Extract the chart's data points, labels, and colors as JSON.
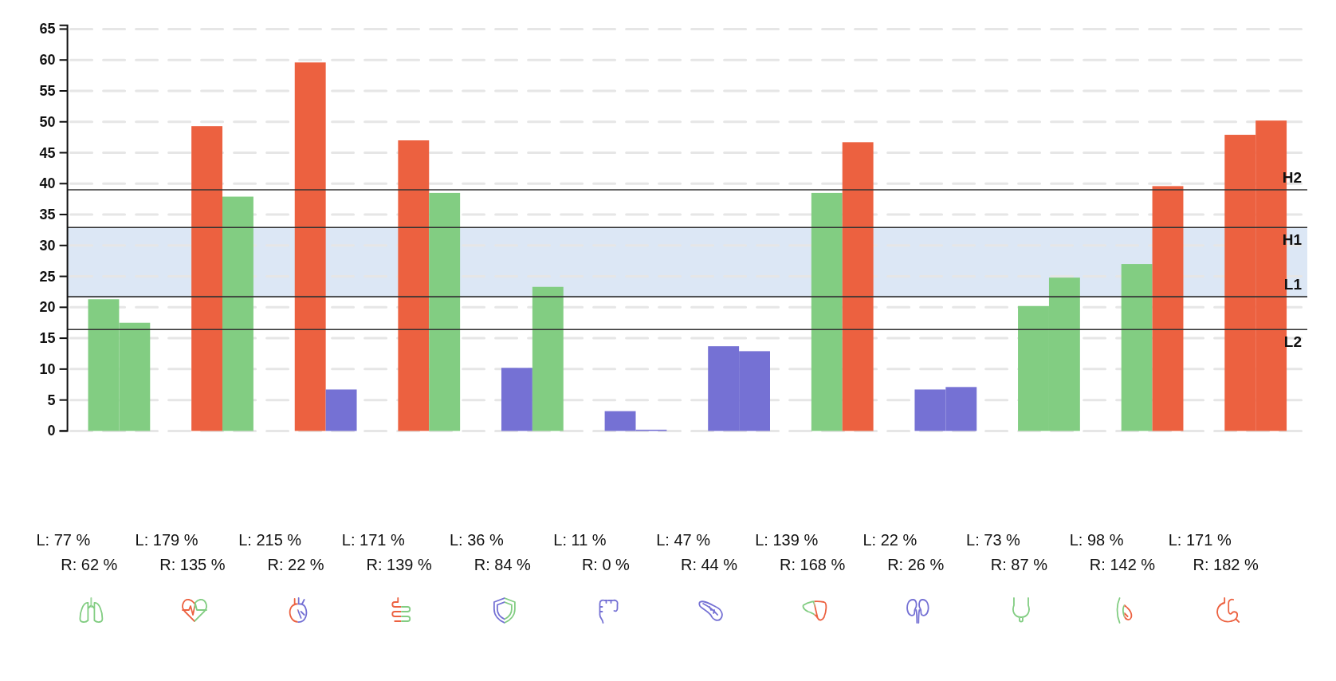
{
  "chart_data": {
    "type": "bar",
    "categories": [
      null,
      null,
      null,
      null,
      null,
      null,
      null,
      null,
      null,
      null,
      null,
      null
    ],
    "series": [
      {
        "values": [
          21.3,
          49.3,
          59.6,
          47.0,
          10.2,
          3.2,
          13.7,
          38.5,
          6.7,
          20.2,
          27.0,
          47.9
        ],
        "colors": [
          "#82cd82",
          "#ec6140",
          "#ec6140",
          "#ec6140",
          "#7571d4",
          "#7571d4",
          "#7571d4",
          "#82cd82",
          "#7571d4",
          "#82cd82",
          "#82cd82",
          "#ec6140"
        ]
      },
      {
        "values": [
          17.5,
          37.9,
          6.7,
          38.5,
          23.3,
          0.2,
          12.9,
          46.7,
          7.1,
          24.8,
          39.6,
          50.2
        ],
        "colors": [
          "#82cd82",
          "#82cd82",
          "#7571d4",
          "#82cd82",
          "#82cd82",
          "#7571d4",
          "#7571d4",
          "#ec6140",
          "#7571d4",
          "#82cd82",
          "#ec6140",
          "#ec6140"
        ]
      }
    ],
    "ylim": [
      0,
      65.6
    ],
    "yticks": [
      0,
      5,
      10,
      15,
      20,
      25,
      30,
      35,
      40,
      45,
      50,
      55,
      60,
      65
    ],
    "grid": "y",
    "bands": [
      {
        "axis": "y",
        "from": 21.7,
        "to": 32.9,
        "color": "#dce7f5"
      }
    ],
    "ref_lines": [
      {
        "axis": "y",
        "value": 39.0,
        "label": "H2",
        "color": "#333333"
      },
      {
        "axis": "y",
        "value": 32.9,
        "label": "H1",
        "color": "#333333"
      },
      {
        "axis": "y",
        "value": 21.7,
        "label": "L1",
        "color": "#333333"
      },
      {
        "axis": "y",
        "value": 16.4,
        "label": "L2",
        "color": "#333333"
      }
    ],
    "annotations": [
      "L: 77 %",
      "R: 62 %",
      "L: 179 %",
      "R: 135 %",
      "L: 215 %",
      "R: 22 %",
      "L: 171 %",
      "R: 139 %",
      "L: 36 %",
      "R: 84 %",
      "L: 11 %",
      "R: 0 %",
      "L: 47 %",
      "R: 44 %",
      "L: 139 %",
      "R: 168 %",
      "L: 22 %",
      "R: 26 %",
      "L: 73 %",
      "R: 87 %",
      "L: 98 %",
      "R: 142 %",
      "L: 171 %",
      "R: 182 %"
    ]
  }
}
